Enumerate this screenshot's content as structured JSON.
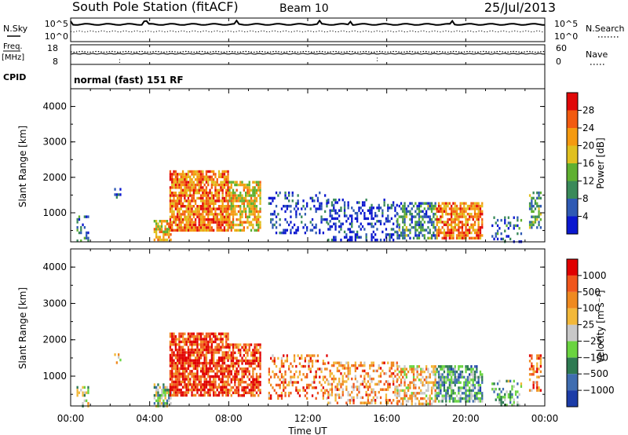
{
  "header": {
    "station": "South Pole Station (fitACF)",
    "beam": "Beam 10",
    "date": "25/Jul/2013"
  },
  "params": {
    "nsky_label": "N.Sky",
    "nsky_ticks": [
      "10^5",
      "10^0"
    ],
    "nsearch_label": "N.Search",
    "nsearch_ticks": [
      "10^5",
      "10^0"
    ],
    "freq_label": "Freq.",
    "freq_unit": "[MHz]",
    "freq_ticks": [
      "18",
      "8"
    ],
    "nave_label": "Nave",
    "nave_ticks": [
      "60",
      "0"
    ],
    "cpid_label": "CPID",
    "cpid_text": "normal (fast) 151 RF"
  },
  "colors": {
    "power": [
      "#0a17cf",
      "#2f5ab4",
      "#3a8a5a",
      "#5fb030",
      "#e0c020",
      "#f59a10",
      "#f25a10",
      "#e00808"
    ],
    "velocity": [
      "#1c3ca8",
      "#3f6db0",
      "#2e7a52",
      "#6ad440",
      "#c8c8c8",
      "#f2b83a",
      "#ef8a20",
      "#f0561c",
      "#e00000"
    ]
  },
  "chart_data": [
    {
      "type": "heatmap",
      "name": "power",
      "ylabel": "Slant Range [km]",
      "xlabel": "Time UT",
      "x_ticks": [
        "00:00",
        "04:00",
        "08:00",
        "12:00",
        "16:00",
        "20:00",
        "00:00"
      ],
      "xlim_hours": [
        0,
        24
      ],
      "y_ticks": [
        1000,
        2000,
        3000,
        4000
      ],
      "ylim_km": [
        180,
        4500
      ],
      "colorbar": {
        "label": "Power [dB]",
        "ticks": [
          4,
          8,
          12,
          16,
          20,
          24,
          28
        ],
        "range": [
          0,
          32
        ]
      },
      "echo_regions": [
        {
          "t0": 0.3,
          "t1": 0.9,
          "r0": 200,
          "r1": 1000,
          "level": 0.25,
          "density": 0.35
        },
        {
          "t0": 2.2,
          "t1": 2.5,
          "r0": 1400,
          "r1": 1700,
          "level": 0.2,
          "density": 0.3
        },
        {
          "t0": 4.2,
          "t1": 5.1,
          "r0": 200,
          "r1": 800,
          "level": 0.6,
          "density": 0.7
        },
        {
          "t0": 5.0,
          "t1": 8.0,
          "r0": 500,
          "r1": 2200,
          "level": 0.75,
          "density": 0.8
        },
        {
          "t0": 8.0,
          "t1": 9.6,
          "r0": 500,
          "r1": 1900,
          "level": 0.6,
          "density": 0.7
        },
        {
          "t0": 10.0,
          "t1": 13.0,
          "r0": 400,
          "r1": 1600,
          "level": 0.1,
          "density": 0.25
        },
        {
          "t0": 13.0,
          "t1": 16.5,
          "r0": 250,
          "r1": 1400,
          "level": 0.12,
          "density": 0.35
        },
        {
          "t0": 16.5,
          "t1": 18.5,
          "r0": 250,
          "r1": 1300,
          "level": 0.3,
          "density": 0.55
        },
        {
          "t0": 18.5,
          "t1": 20.8,
          "r0": 300,
          "r1": 1300,
          "level": 0.75,
          "density": 0.75
        },
        {
          "t0": 21.3,
          "t1": 22.8,
          "r0": 200,
          "r1": 900,
          "level": 0.2,
          "density": 0.3
        },
        {
          "t0": 23.2,
          "t1": 23.8,
          "r0": 600,
          "r1": 1600,
          "level": 0.35,
          "density": 0.55
        }
      ]
    },
    {
      "type": "heatmap",
      "name": "velocity",
      "ylabel": "Slant Range [km]",
      "xlabel": "Time UT",
      "x_ticks": [
        "00:00",
        "04:00",
        "08:00",
        "12:00",
        "16:00",
        "20:00",
        "00:00"
      ],
      "xlim_hours": [
        0,
        24
      ],
      "y_ticks": [
        1000,
        2000,
        3000,
        4000
      ],
      "ylim_km": [
        180,
        4500
      ],
      "colorbar": {
        "label": "Velocity [m s⁻¹]",
        "ticks": [
          "1000",
          "500",
          "100",
          "25",
          "−25",
          "−100",
          "−500",
          "−1000"
        ]
      },
      "echo_regions": [
        {
          "t0": 0.3,
          "t1": 0.9,
          "r0": 200,
          "r1": 800,
          "level": 0.45,
          "density": 0.35
        },
        {
          "t0": 2.2,
          "t1": 2.5,
          "r0": 1400,
          "r1": 1700,
          "level": 0.6,
          "density": 0.3
        },
        {
          "t0": 4.2,
          "t1": 5.1,
          "r0": 200,
          "r1": 800,
          "level": 0.4,
          "density": 0.6
        },
        {
          "t0": 5.0,
          "t1": 8.0,
          "r0": 500,
          "r1": 2200,
          "level": 0.88,
          "density": 0.8
        },
        {
          "t0": 8.0,
          "t1": 9.6,
          "r0": 500,
          "r1": 1900,
          "level": 0.85,
          "density": 0.7
        },
        {
          "t0": 10.0,
          "t1": 13.0,
          "r0": 400,
          "r1": 1600,
          "level": 0.75,
          "density": 0.35
        },
        {
          "t0": 13.0,
          "t1": 16.5,
          "r0": 250,
          "r1": 1400,
          "level": 0.7,
          "density": 0.4
        },
        {
          "t0": 16.5,
          "t1": 18.5,
          "r0": 250,
          "r1": 1300,
          "level": 0.6,
          "density": 0.55
        },
        {
          "t0": 18.5,
          "t1": 20.8,
          "r0": 300,
          "r1": 1300,
          "level": 0.3,
          "density": 0.7
        },
        {
          "t0": 21.3,
          "t1": 22.8,
          "r0": 200,
          "r1": 900,
          "level": 0.35,
          "density": 0.3
        },
        {
          "t0": 23.2,
          "t1": 23.8,
          "r0": 600,
          "r1": 1600,
          "level": 0.75,
          "density": 0.5
        }
      ]
    }
  ]
}
